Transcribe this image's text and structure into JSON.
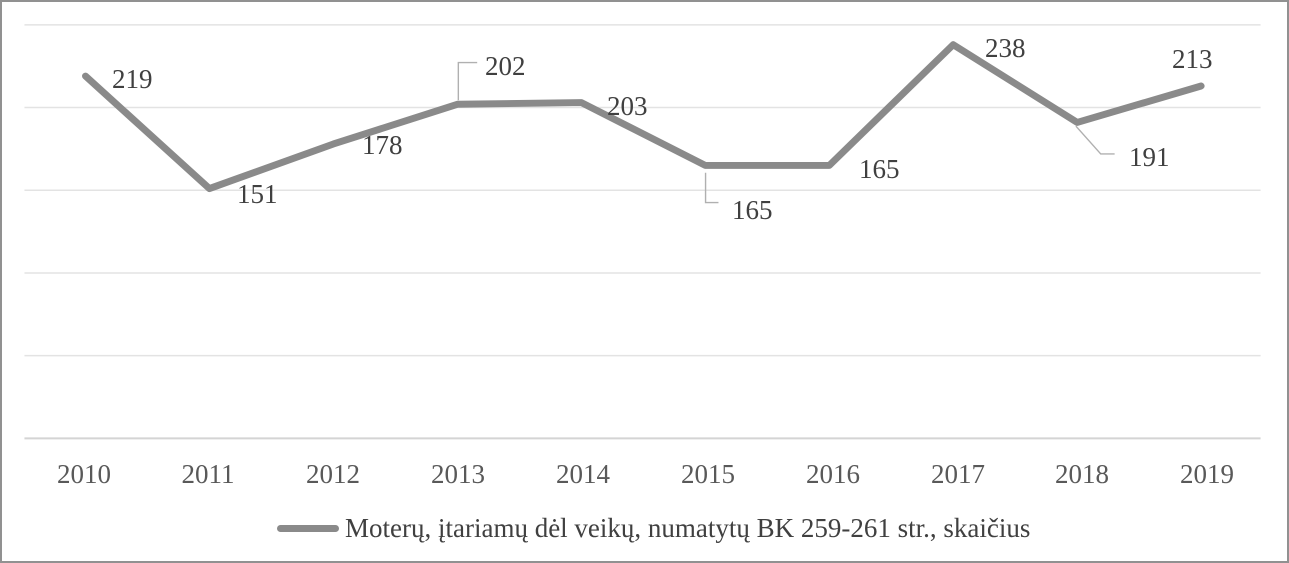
{
  "chart_data": {
    "type": "line",
    "title": "",
    "xlabel": "",
    "ylabel": "",
    "categories": [
      "2010",
      "2011",
      "2012",
      "2013",
      "2014",
      "2015",
      "2016",
      "2017",
      "2018",
      "2019"
    ],
    "series": [
      {
        "name": "Moterų, įtariamų dėl veikų, numatytų BK 259-261 str., skaičius",
        "values": [
          219,
          151,
          178,
          202,
          203,
          165,
          165,
          238,
          191,
          213
        ]
      }
    ],
    "ylim": [
      0,
      250
    ],
    "gridline_step": 50,
    "grid": true,
    "y_axis_labels_visible": false,
    "data_labels_visible": true,
    "callouts": [
      "2013",
      "2015",
      "2018"
    ],
    "legend_position": "bottom",
    "colors": {
      "line": "#8a8a8a",
      "gridline": "#e3e3e3",
      "axis_line": "#d4d4d4",
      "callout_line": "#b0b0b0",
      "data_label": "#404040",
      "axis_label": "#595959",
      "frame_border": "#919191",
      "background": "#ffffff"
    }
  }
}
